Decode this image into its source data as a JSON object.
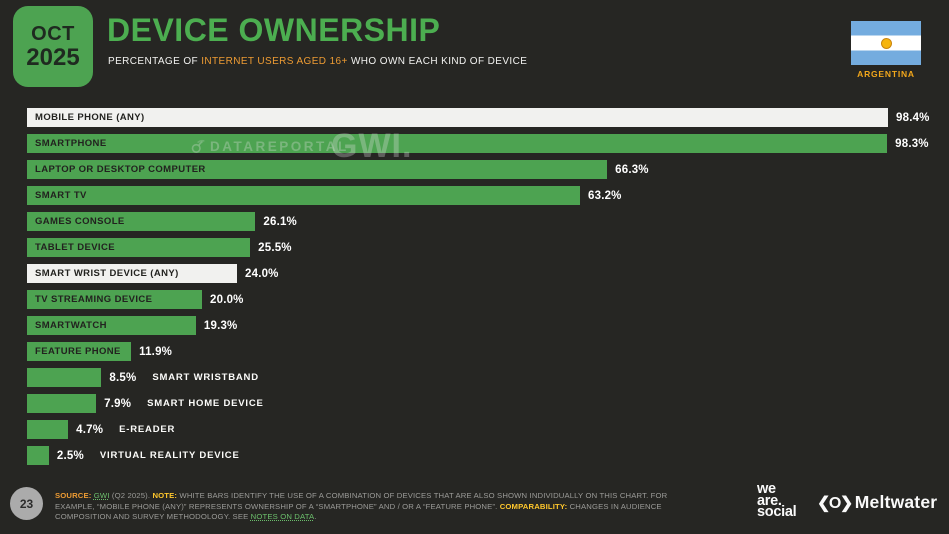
{
  "header": {
    "date_month": "OCT",
    "date_year": "2025",
    "title": "DEVICE OWNERSHIP",
    "subtitle_prefix": "PERCENTAGE OF ",
    "subtitle_highlight": "INTERNET USERS AGED 16+",
    "subtitle_suffix": " WHO OWN EACH KIND OF DEVICE",
    "country": "ARGENTINA"
  },
  "watermarks": {
    "datareportal": "DATAREPORTAL",
    "gwi": "GWI."
  },
  "chart_data": {
    "type": "bar",
    "orientation": "horizontal",
    "title": "Device ownership, percentage of internet users aged 16+ who own each kind of device",
    "unit": "%",
    "xlim": [
      0,
      100
    ],
    "grid": false,
    "legend": "none",
    "categories": [
      "MOBILE PHONE (ANY)",
      "SMARTPHONE",
      "LAPTOP OR DESKTOP COMPUTER",
      "SMART TV",
      "GAMES CONSOLE",
      "TABLET DEVICE",
      "SMART WRIST DEVICE (ANY)",
      "TV STREAMING DEVICE",
      "SMARTWATCH",
      "FEATURE PHONE",
      "SMART WRISTBAND",
      "SMART HOME DEVICE",
      "E-READER",
      "VIRTUAL REALITY DEVICE"
    ],
    "values": [
      98.4,
      98.3,
      66.3,
      63.2,
      26.1,
      25.5,
      24.0,
      20.0,
      19.3,
      11.9,
      8.5,
      7.9,
      4.7,
      2.5
    ],
    "display_values": [
      "98.4%",
      "98.3%",
      "66.3%",
      "63.2%",
      "26.1%",
      "25.5%",
      "24.0%",
      "20.0%",
      "19.3%",
      "11.9%",
      "8.5%",
      "7.9%",
      "4.7%",
      "2.5%"
    ],
    "bar_styles": [
      "white",
      "green",
      "green",
      "green",
      "green",
      "green",
      "white",
      "green",
      "green",
      "green",
      "green",
      "green",
      "green",
      "green"
    ],
    "label_positions": [
      "inside",
      "inside",
      "inside",
      "inside",
      "inside",
      "inside",
      "inside",
      "inside",
      "inside",
      "inside",
      "outside",
      "outside",
      "outside",
      "outside"
    ]
  },
  "footer": {
    "page_number": "23",
    "source_label": "SOURCE:",
    "source_link": "GWI",
    "source_rest": " (Q2 2025). ",
    "note_label": "NOTE:",
    "note_text": " WHITE BARS IDENTIFY THE USE OF A COMBINATION OF DEVICES THAT ARE ALSO SHOWN INDIVIDUALLY ON THIS CHART. FOR EXAMPLE, “MOBILE PHONE (ANY)” REPRESENTS OWNERSHIP OF A “SMARTPHONE” AND / OR A “FEATURE PHONE”. ",
    "comparability_label": "COMPARABILITY:",
    "comparability_text": " CHANGES IN AUDIENCE COMPOSITION AND SURVEY METHODOLOGY. SEE ",
    "notes_link": "NOTES ON DATA",
    "notes_suffix": ".",
    "wearesocial_lines": [
      "we",
      "are.",
      "social"
    ],
    "meltwater_glyph": "❮O❯",
    "meltwater_name": "Meltwater"
  },
  "colors": {
    "background": "#262623",
    "accent_green": "#4da351",
    "bar_white": "#f1f1ef",
    "accent_orange": "#ED9B33",
    "highlight_yellow": "#FFC72C",
    "flag_blue": "#74ACDF",
    "sun_gold": "#F6B40E"
  }
}
